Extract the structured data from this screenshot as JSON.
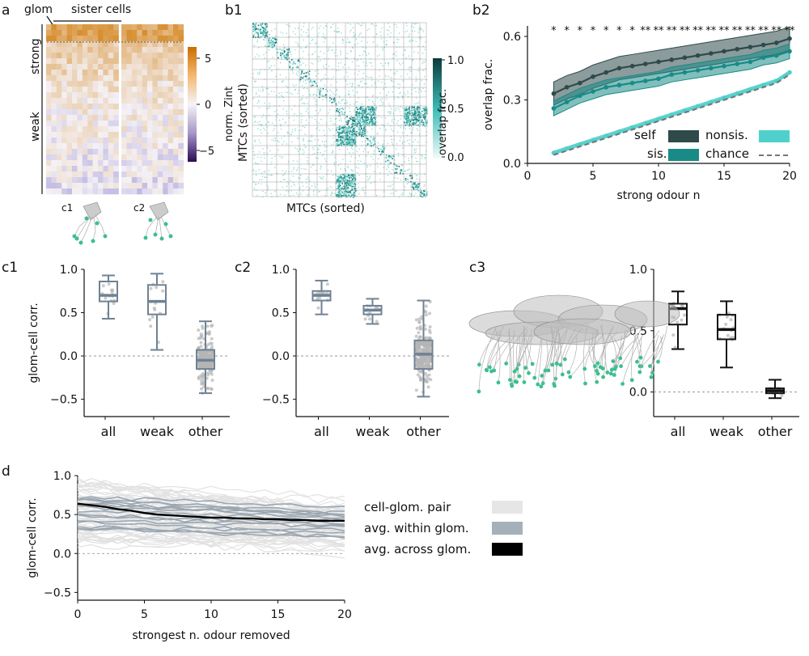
{
  "panel_labels": {
    "a": "a",
    "b1": "b1",
    "b2": "b2",
    "c1": "c1",
    "c2": "c2",
    "c3": "c3",
    "d": "d"
  },
  "panel_a": {
    "glom_label": "glom",
    "sister_label": "sister cells",
    "strong_label": "strong",
    "weak_label": "weak",
    "cbar_label": "norm. Zint",
    "cbar_ticks": [
      "5",
      "0",
      "−5"
    ],
    "cell_labels": [
      "c1",
      "c2"
    ],
    "colors": {
      "pos": "#d98a1c",
      "neg": "#4a2a7a",
      "mid": "#f4f2f6",
      "cell": "#3cbf8f"
    }
  },
  "panel_b1": {
    "xlabel": "MTCs (sorted)",
    "ylabel": "MTCs (sorted)",
    "cbar_label": "overlap frac.",
    "cbar_ticks": [
      "1.0",
      "0.5",
      "0.0"
    ],
    "color": "#2ab8b0"
  },
  "chart_data": [
    {
      "id": "b2",
      "type": "line",
      "xlabel": "strong odour n",
      "ylabel": "overlap frac.",
      "xlim": [
        0,
        20
      ],
      "ylim": [
        0,
        0.65
      ],
      "xticks": [
        "0",
        "5",
        "10",
        "15",
        "20"
      ],
      "yticks": [
        "0.0",
        "0.3",
        "0.6"
      ],
      "x": [
        2,
        3,
        4,
        5,
        6,
        7,
        8,
        9,
        10,
        11,
        12,
        13,
        14,
        15,
        16,
        17,
        18,
        19,
        20
      ],
      "series": [
        {
          "name": "self",
          "color": "#2e4a4a",
          "values": [
            0.33,
            0.36,
            0.38,
            0.41,
            0.43,
            0.45,
            0.46,
            0.47,
            0.48,
            0.49,
            0.5,
            0.51,
            0.52,
            0.53,
            0.54,
            0.55,
            0.56,
            0.57,
            0.59
          ],
          "band": 0.055
        },
        {
          "name": "sis.",
          "color": "#1a8a86",
          "values": [
            0.26,
            0.29,
            0.32,
            0.34,
            0.36,
            0.37,
            0.38,
            0.39,
            0.4,
            0.42,
            0.43,
            0.44,
            0.45,
            0.46,
            0.47,
            0.48,
            0.5,
            0.51,
            0.53
          ],
          "band": 0.035
        },
        {
          "name": "nonsis.",
          "color": "#4fd0cb",
          "values": [
            0.05,
            0.07,
            0.09,
            0.11,
            0.13,
            0.15,
            0.17,
            0.19,
            0.21,
            0.23,
            0.25,
            0.27,
            0.29,
            0.31,
            0.33,
            0.35,
            0.37,
            0.39,
            0.43
          ],
          "band": 0.008
        },
        {
          "name": "chance",
          "color": "#777777",
          "values": [
            0.04,
            0.06,
            0.08,
            0.1,
            0.12,
            0.14,
            0.16,
            0.18,
            0.2,
            0.22,
            0.24,
            0.26,
            0.28,
            0.3,
            0.32,
            0.34,
            0.36,
            0.38,
            0.42
          ],
          "dashed": true
        }
      ],
      "sig": [
        "*",
        "*",
        "*",
        "*",
        "*",
        "*",
        "*",
        "**",
        "**",
        "**",
        "**",
        "**",
        "**",
        "**",
        "**",
        "**",
        "**",
        "**",
        "**"
      ],
      "legend": [
        "self",
        "sis.",
        "nonsis.",
        "chance"
      ]
    },
    {
      "id": "c1",
      "type": "box",
      "ylabel": "glom-cell corr.",
      "categories": [
        "all",
        "weak",
        "other"
      ],
      "ylim": [
        -0.7,
        1.0
      ],
      "yticks": [
        "1.0",
        "0.5",
        "0.0",
        "−0.5"
      ],
      "color": "#6f8294",
      "boxes": [
        {
          "min": 0.43,
          "q1": 0.63,
          "median": 0.7,
          "q3": 0.86,
          "max": 0.93
        },
        {
          "min": 0.07,
          "q1": 0.48,
          "median": 0.63,
          "q3": 0.82,
          "max": 0.95
        },
        {
          "min": -0.43,
          "q1": -0.15,
          "median": -0.05,
          "q3": 0.07,
          "max": 0.4
        }
      ]
    },
    {
      "id": "c2",
      "type": "box",
      "categories": [
        "all",
        "weak",
        "other"
      ],
      "ylim": [
        -0.7,
        1.0
      ],
      "yticks": [
        "1.0",
        "0.5",
        "0.0",
        "−0.5"
      ],
      "color": "#6f8294",
      "boxes": [
        {
          "min": 0.48,
          "q1": 0.64,
          "median": 0.7,
          "q3": 0.75,
          "max": 0.87
        },
        {
          "min": 0.37,
          "q1": 0.48,
          "median": 0.53,
          "q3": 0.58,
          "max": 0.66
        },
        {
          "min": -0.47,
          "q1": -0.15,
          "median": 0.02,
          "q3": 0.18,
          "max": 0.64
        }
      ]
    },
    {
      "id": "c3",
      "type": "box",
      "categories": [
        "all",
        "weak",
        "other"
      ],
      "ylim": [
        -0.2,
        1.0
      ],
      "yticks": [
        "1.0",
        "0.5",
        "0.0"
      ],
      "color": "#111111",
      "boxes": [
        {
          "min": 0.35,
          "q1": 0.55,
          "median": 0.68,
          "q3": 0.72,
          "max": 0.82
        },
        {
          "min": 0.2,
          "q1": 0.43,
          "median": 0.51,
          "q3": 0.63,
          "max": 0.74
        },
        {
          "min": -0.05,
          "q1": -0.01,
          "median": 0.01,
          "q3": 0.03,
          "max": 0.1
        }
      ]
    },
    {
      "id": "d",
      "type": "line",
      "xlabel": "strongest n. odour removed",
      "ylabel": "glom-cell corr.",
      "xlim": [
        0,
        20
      ],
      "ylim": [
        -0.6,
        1.0
      ],
      "xticks": [
        "0",
        "5",
        "10",
        "15",
        "20"
      ],
      "yticks": [
        "1.0",
        "0.5",
        "0.0",
        "−0.5"
      ],
      "x": [
        0,
        1,
        2,
        3,
        4,
        5,
        6,
        7,
        8,
        9,
        10,
        11,
        12,
        13,
        14,
        15,
        16,
        17,
        18,
        19,
        20
      ],
      "series": [
        {
          "name": "avg. across glom.",
          "color": "#000000",
          "values": [
            0.64,
            0.62,
            0.6,
            0.57,
            0.55,
            0.52,
            0.5,
            0.49,
            0.48,
            0.47,
            0.46,
            0.46,
            0.45,
            0.45,
            0.44,
            0.44,
            0.43,
            0.43,
            0.42,
            0.42,
            0.42
          ]
        }
      ],
      "legend": [
        {
          "label": "cell-glom. pair",
          "color": "#e6e6e6"
        },
        {
          "label": "avg. within glom.",
          "color": "#a5b0ba"
        },
        {
          "label": "avg. across glom.",
          "color": "#000000"
        }
      ]
    }
  ]
}
